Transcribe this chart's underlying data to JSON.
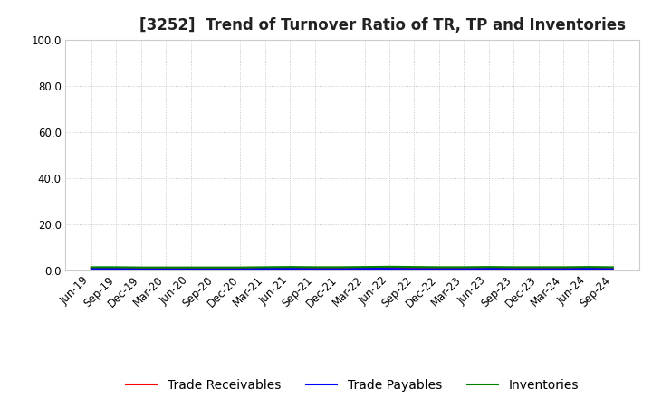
{
  "title": "[3252]  Trend of Turnover Ratio of TR, TP and Inventories",
  "ylim": [
    0,
    100
  ],
  "yticks": [
    0,
    20,
    40,
    60,
    80,
    100
  ],
  "ytick_labels": [
    "0.0",
    "20.0",
    "40.0",
    "60.0",
    "80.0",
    "100.0"
  ],
  "x_labels": [
    "Jun-19",
    "Sep-19",
    "Dec-19",
    "Mar-20",
    "Jun-20",
    "Sep-20",
    "Dec-20",
    "Mar-21",
    "Jun-21",
    "Sep-21",
    "Dec-21",
    "Mar-22",
    "Jun-22",
    "Sep-22",
    "Dec-22",
    "Mar-23",
    "Jun-23",
    "Sep-23",
    "Dec-23",
    "Mar-24",
    "Jun-24",
    "Sep-24"
  ],
  "trade_receivables": [
    1.2,
    1.1,
    1.0,
    1.0,
    1.0,
    1.0,
    1.0,
    1.1,
    1.1,
    1.0,
    1.0,
    1.1,
    1.2,
    1.1,
    1.0,
    1.0,
    1.1,
    1.0,
    1.0,
    1.0,
    1.1,
    1.0
  ],
  "trade_payables": [
    0.8,
    0.8,
    0.7,
    0.7,
    0.7,
    0.7,
    0.7,
    0.8,
    0.8,
    0.7,
    0.7,
    0.8,
    0.8,
    0.7,
    0.7,
    0.7,
    0.8,
    0.7,
    0.7,
    0.7,
    0.8,
    0.7
  ],
  "inventories": [
    1.5,
    1.5,
    1.4,
    1.4,
    1.4,
    1.4,
    1.4,
    1.5,
    1.6,
    1.5,
    1.5,
    1.6,
    1.7,
    1.6,
    1.5,
    1.5,
    1.6,
    1.5,
    1.5,
    1.5,
    1.6,
    1.5
  ],
  "tr_color": "#FF0000",
  "tp_color": "#0000FF",
  "inv_color": "#008000",
  "legend_labels": [
    "Trade Receivables",
    "Trade Payables",
    "Inventories"
  ],
  "background_color": "#FFFFFF",
  "grid_color": "#BBBBBB",
  "title_fontsize": 12,
  "tick_fontsize": 8.5,
  "legend_fontsize": 10
}
